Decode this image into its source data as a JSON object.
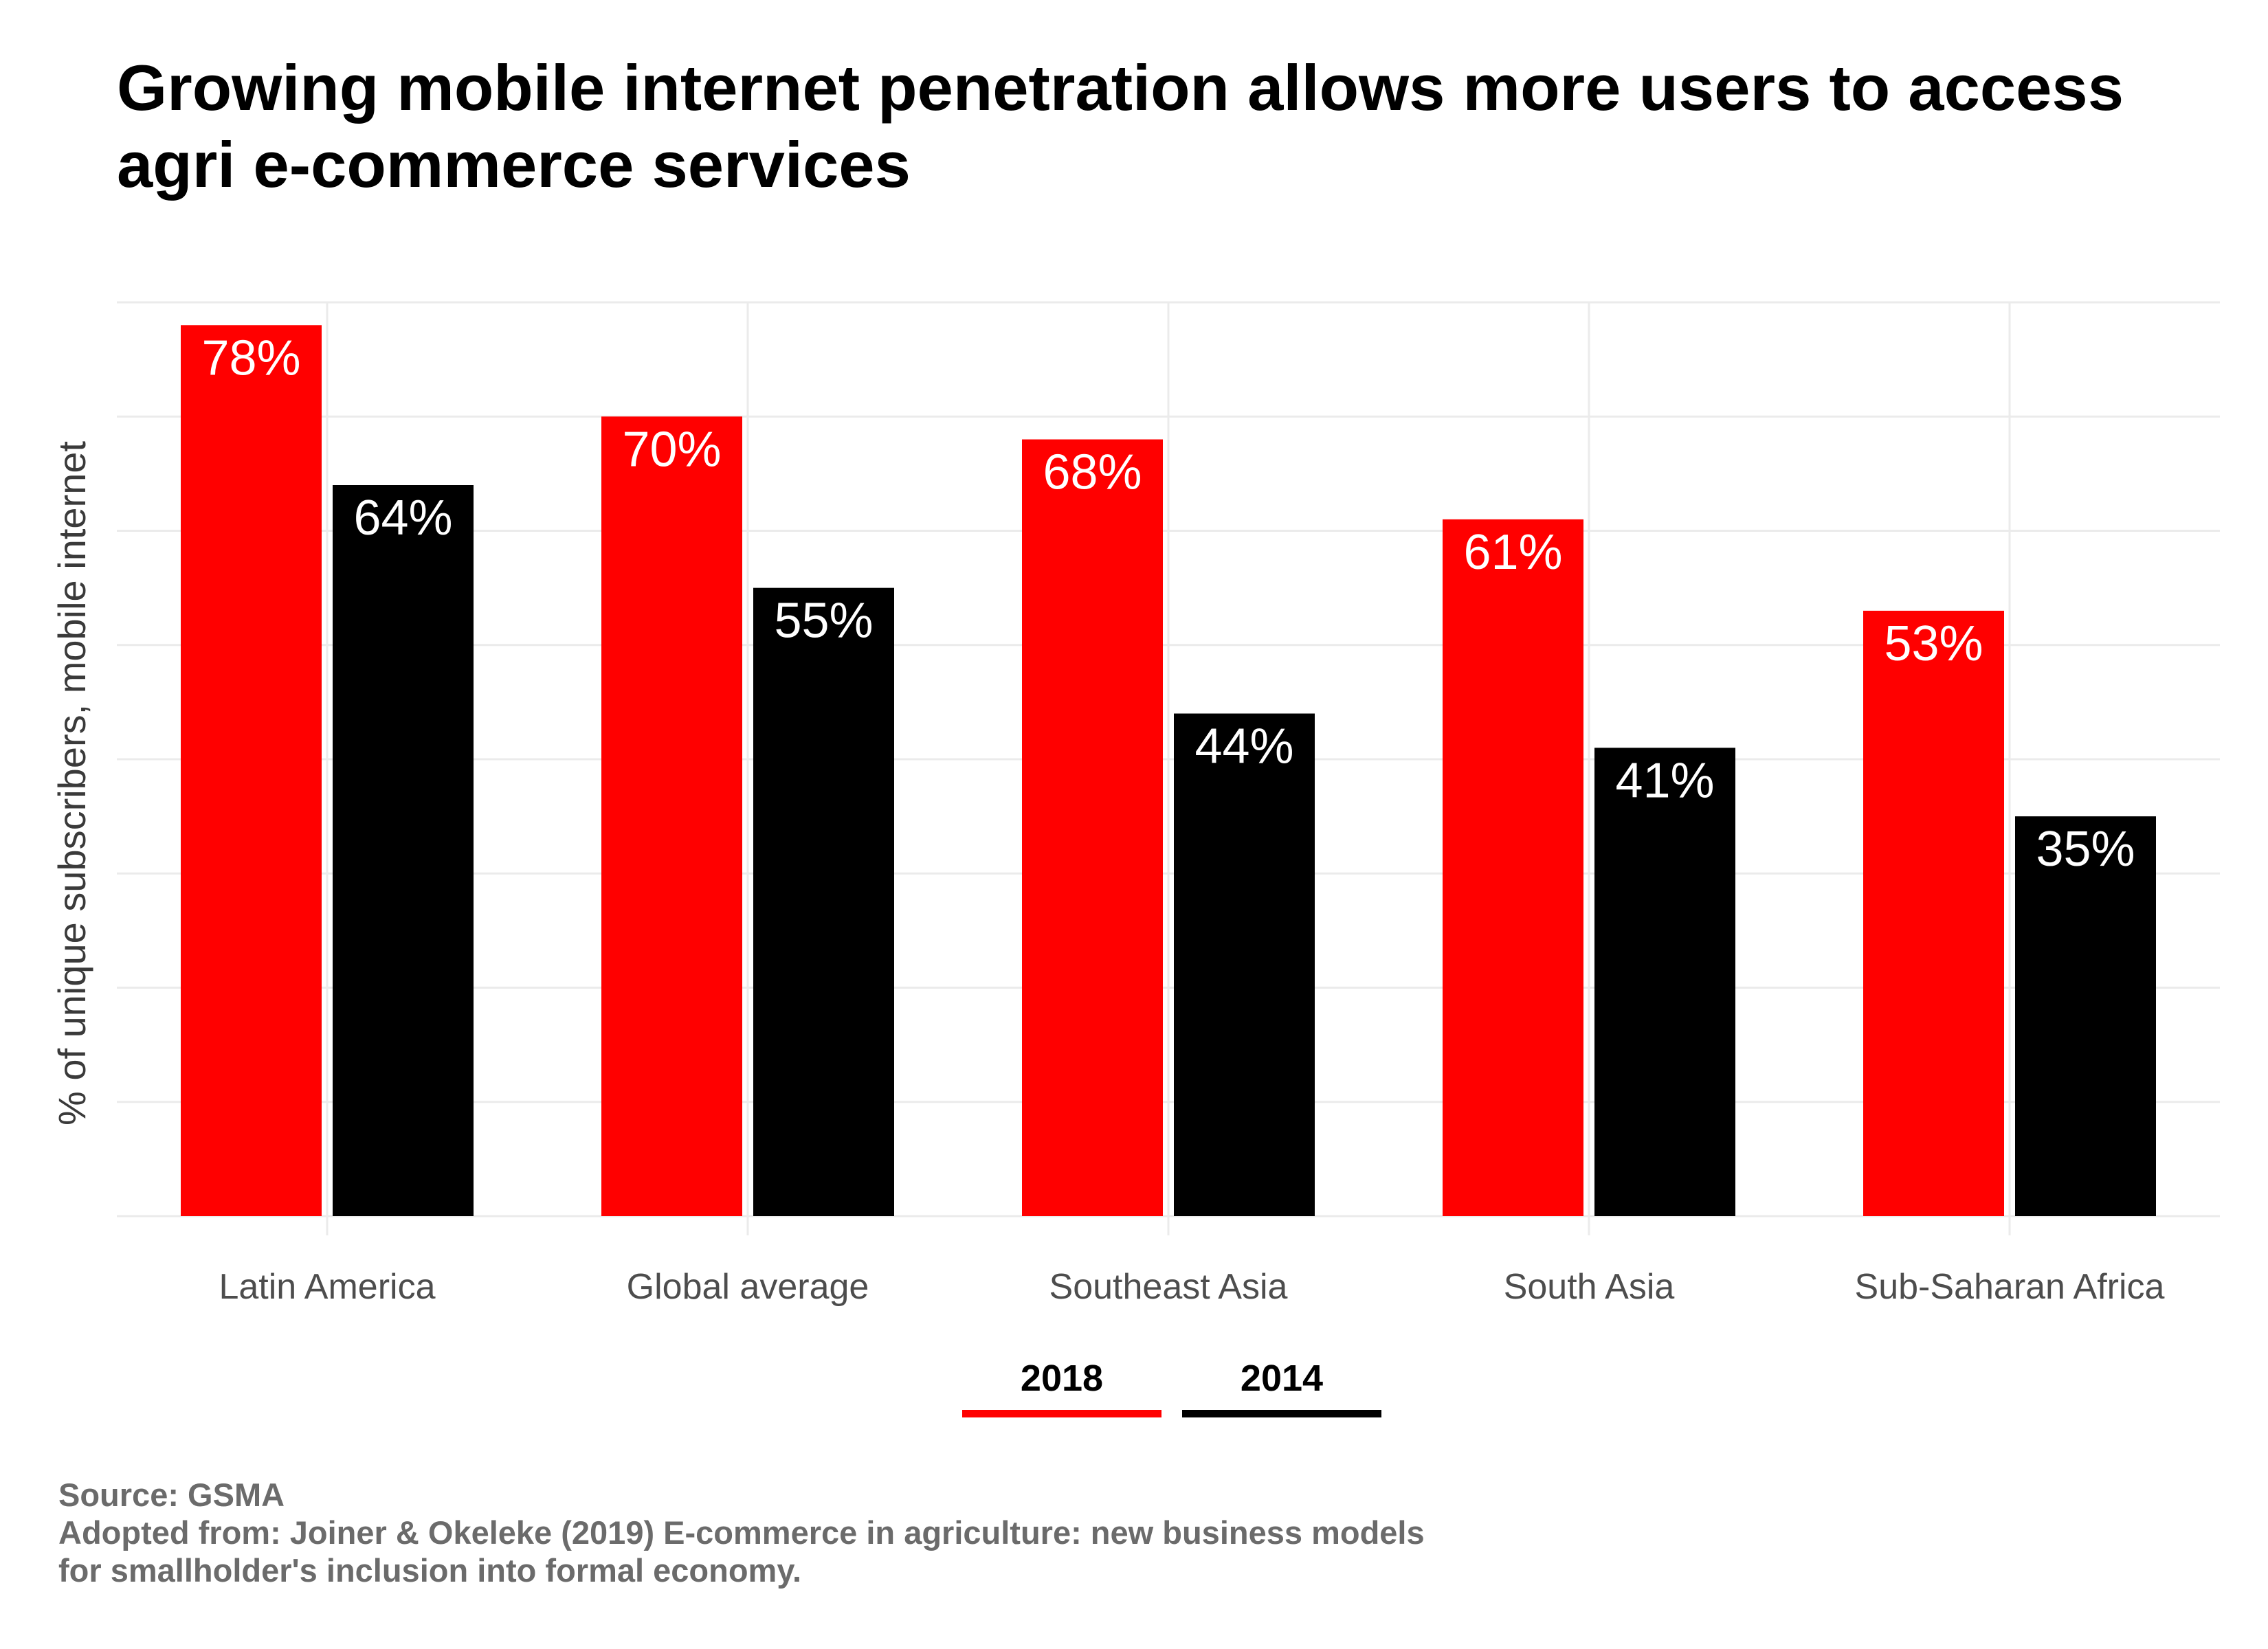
{
  "title_lines": [
    "Growing mobile internet penetration allows more users to access",
    "agri e-commerce services"
  ],
  "footer": {
    "source": "Source: GSMA",
    "adopted_line1": "Adopted from: Joiner & Okeleke (2019) E-commerce in agriculture: new business models",
    "adopted_line2": "for smallholder's inclusion into formal economy."
  },
  "legend": [
    {
      "label": "2018",
      "color": "#ff0000"
    },
    {
      "label": "2014",
      "color": "#000000"
    }
  ],
  "chart_data": {
    "type": "bar",
    "title": "Growing mobile internet penetration allows more users to access agri e-commerce services",
    "xlabel": "",
    "ylabel": "% of unique subscribers, mobile internet",
    "categories": [
      "Latin America",
      "Global average",
      "Southeast Asia",
      "South Asia",
      "Sub-Saharan Africa"
    ],
    "series": [
      {
        "name": "2018",
        "color": "#ff0000",
        "values": [
          78,
          70,
          68,
          61,
          53
        ],
        "labels": [
          "78%",
          "70%",
          "68%",
          "61%",
          "53%"
        ]
      },
      {
        "name": "2014",
        "color": "#000000",
        "values": [
          64,
          55,
          44,
          41,
          35
        ],
        "labels": [
          "64%",
          "55%",
          "44%",
          "41%",
          "35%"
        ]
      }
    ],
    "ylim": [
      0,
      80
    ],
    "y_gridlines": [
      0,
      10,
      20,
      30,
      40,
      50,
      60,
      70,
      80
    ],
    "grid": true,
    "data_label_color": "#ffffff",
    "legend_position": "bottom"
  }
}
